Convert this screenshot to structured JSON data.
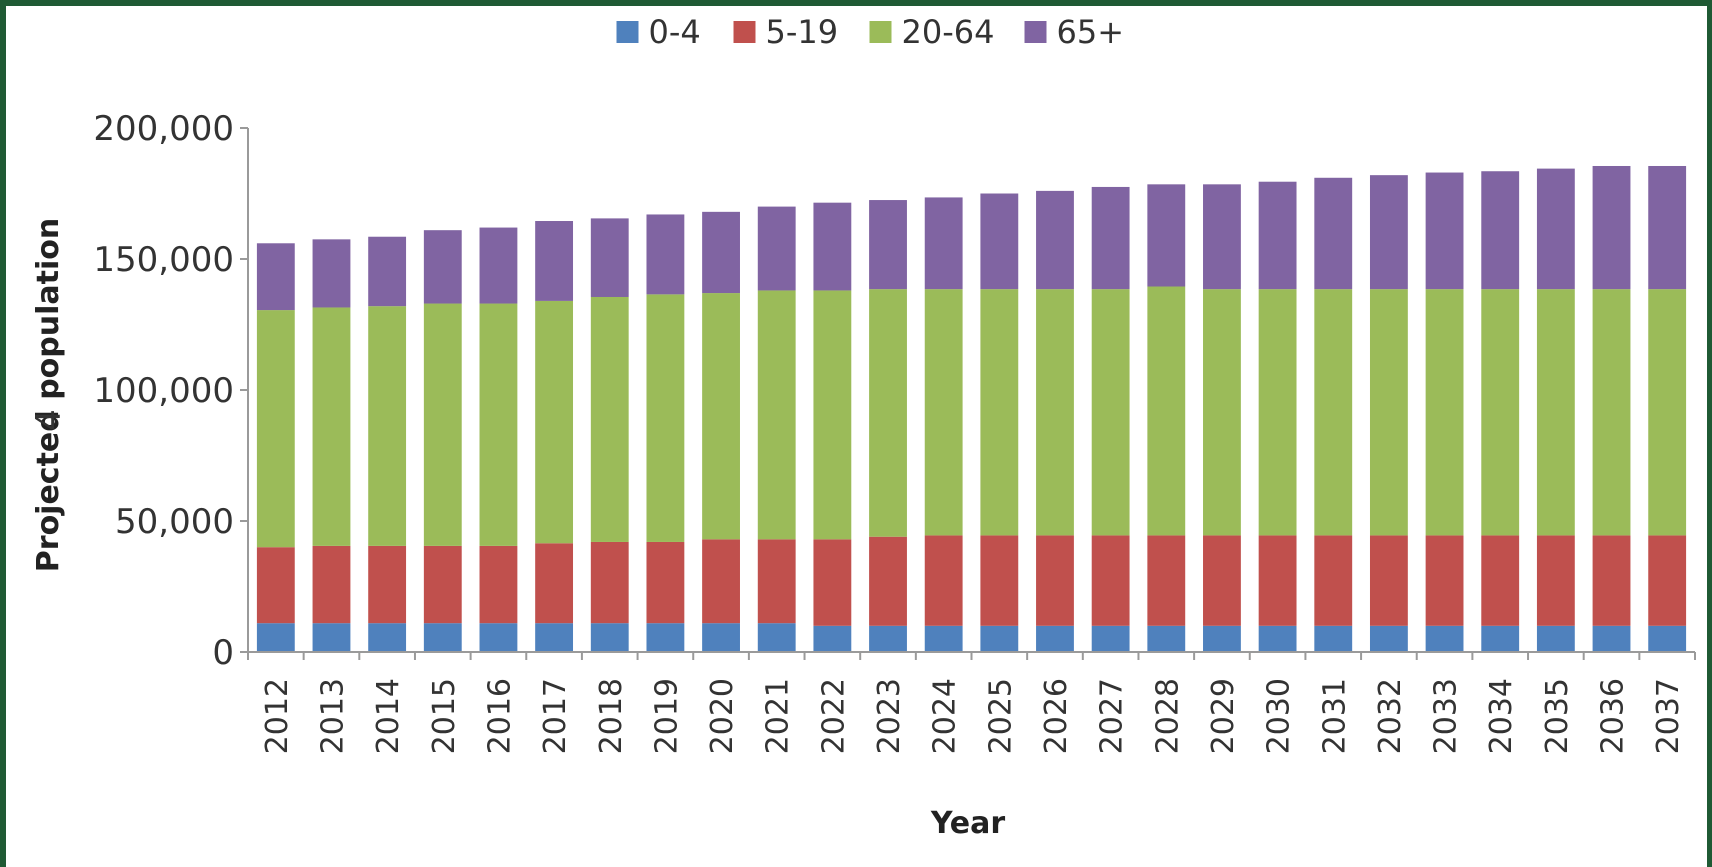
{
  "chart_data": {
    "type": "bar",
    "stacked": true,
    "title": "",
    "xlabel": "Year",
    "ylabel": "Projected population",
    "ylim": [
      0,
      200000
    ],
    "yticks": [
      0,
      50000,
      100000,
      150000,
      200000
    ],
    "ytick_labels": [
      "0",
      "50,000",
      "100,000",
      "150,000",
      "200,000"
    ],
    "grid": false,
    "legend_position": "top",
    "categories": [
      "2012",
      "2013",
      "2014",
      "2015",
      "2016",
      "2017",
      "2018",
      "2019",
      "2020",
      "2021",
      "2022",
      "2023",
      "2024",
      "2025",
      "2026",
      "2027",
      "2028",
      "2029",
      "2030",
      "2031",
      "2032",
      "2033",
      "2034",
      "2035",
      "2036",
      "2037"
    ],
    "series": [
      {
        "name": "0-4",
        "color": "#4f81bd",
        "values": [
          11000,
          11000,
          11000,
          11000,
          11000,
          11000,
          11000,
          11000,
          11000,
          11000,
          10000,
          10000,
          10000,
          10000,
          10000,
          10000,
          10000,
          10000,
          10000,
          10000,
          10000,
          10000,
          10000,
          10000,
          10000,
          10000
        ]
      },
      {
        "name": "5-19",
        "color": "#c0504d",
        "values": [
          29000,
          29500,
          29500,
          29500,
          29500,
          30500,
          31000,
          31000,
          32000,
          32000,
          33000,
          34000,
          34500,
          34500,
          34500,
          34500,
          34500,
          34500,
          34500,
          34500,
          34500,
          34500,
          34500,
          34500,
          34500,
          34500
        ]
      },
      {
        "name": "20-64",
        "color": "#9bbb59",
        "values": [
          90500,
          91000,
          91500,
          92500,
          92500,
          92500,
          93500,
          94500,
          94000,
          95000,
          95000,
          94500,
          94000,
          94000,
          94000,
          94000,
          95000,
          94000,
          94000,
          94000,
          94000,
          94000,
          94000,
          94000,
          94000,
          94000
        ]
      },
      {
        "name": "65+",
        "color": "#8064a2",
        "values": [
          25500,
          26000,
          26500,
          28000,
          29000,
          30500,
          30000,
          30500,
          31000,
          32000,
          33500,
          34000,
          35000,
          36500,
          37500,
          39000,
          39000,
          40000,
          41000,
          42500,
          43500,
          44500,
          45000,
          46000,
          47000,
          47000
        ]
      }
    ],
    "annotation": "4"
  }
}
